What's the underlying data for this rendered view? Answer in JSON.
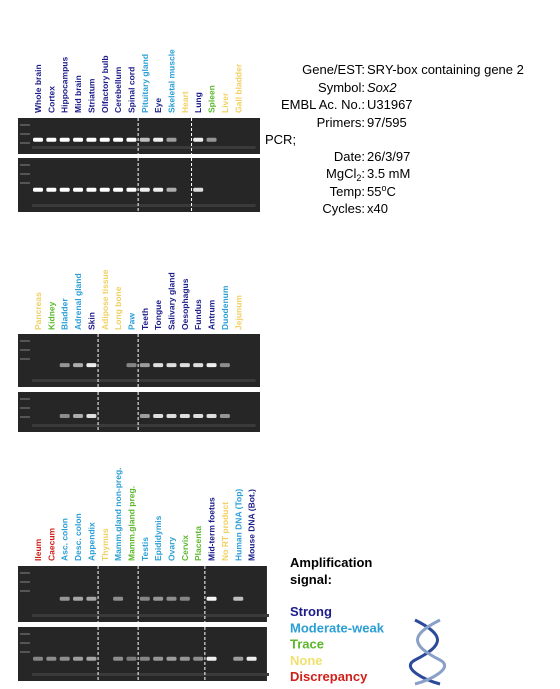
{
  "panels": [
    {
      "lanes": [
        {
          "label": "Whole brain",
          "color": "#1c1c8a"
        },
        {
          "label": "Cortex",
          "color": "#1c1c8a"
        },
        {
          "label": "Hippocampus",
          "color": "#1c1c8a"
        },
        {
          "label": "Mid brain",
          "color": "#1c1c8a"
        },
        {
          "label": "Striatum",
          "color": "#1c1c8a"
        },
        {
          "label": "Olfactory bulb",
          "color": "#1c1c8a"
        },
        {
          "label": "Cerebellum",
          "color": "#1c1c8a"
        },
        {
          "label": "Spinal cord",
          "color": "#1c1c8a"
        },
        {
          "label": "Pituitary gland",
          "color": "#2a9fd6"
        },
        {
          "label": "Eye",
          "color": "#1c1c8a"
        },
        {
          "label": "Skeletal muscle",
          "color": "#2a9fd6"
        },
        {
          "label": "Heart",
          "color": "#f0d060"
        },
        {
          "label": "Lung",
          "color": "#1c1c8a"
        },
        {
          "label": "Spleen",
          "color": "#5cb82a"
        },
        {
          "label": "Liver",
          "color": "#f0d060"
        },
        {
          "label": "Gall bladder",
          "color": "#f0d060"
        }
      ]
    },
    {
      "lanes": [
        {
          "label": "Pancreas",
          "color": "#f0d060"
        },
        {
          "label": "Kidney",
          "color": "#5cb82a"
        },
        {
          "label": "Bladder",
          "color": "#2a9fd6"
        },
        {
          "label": "Adrenal gland",
          "color": "#2a9fd6"
        },
        {
          "label": "Skin",
          "color": "#1c1c8a"
        },
        {
          "label": "Adipose tissue",
          "color": "#f0d060"
        },
        {
          "label": "Long bone",
          "color": "#f0d060"
        },
        {
          "label": "Paw",
          "color": "#2a9fd6"
        },
        {
          "label": "Teeth",
          "color": "#1c1c8a"
        },
        {
          "label": "Tongue",
          "color": "#1c1c8a"
        },
        {
          "label": "Salivary gland",
          "color": "#1c1c8a"
        },
        {
          "label": "Oesophagus",
          "color": "#1c1c8a"
        },
        {
          "label": "Fundus",
          "color": "#1c1c8a"
        },
        {
          "label": "Antrum",
          "color": "#1c1c8a"
        },
        {
          "label": "Duodenum",
          "color": "#2a9fd6"
        },
        {
          "label": "Jejunum",
          "color": "#f0d060"
        }
      ]
    },
    {
      "lanes": [
        {
          "label": "Ileum",
          "color": "#d0201a"
        },
        {
          "label": "Caecum",
          "color": "#d0201a"
        },
        {
          "label": "Asc. colon",
          "color": "#2a9fd6"
        },
        {
          "label": "Desc. colon",
          "color": "#2a9fd6"
        },
        {
          "label": "Appendix",
          "color": "#2a9fd6"
        },
        {
          "label": "Thymus",
          "color": "#f0d060"
        },
        {
          "label": "Mamm.gland non-preg.",
          "color": "#2a9fd6"
        },
        {
          "label": "Mamm.gland preg.",
          "color": "#5cb82a"
        },
        {
          "label": "Testis",
          "color": "#2a9fd6"
        },
        {
          "label": "Epididymis",
          "color": "#2a9fd6"
        },
        {
          "label": "Ovary",
          "color": "#2a9fd6"
        },
        {
          "label": "Cervix",
          "color": "#5cb82a"
        },
        {
          "label": "Placenta",
          "color": "#5cb82a"
        },
        {
          "label": "Mid-term foetus",
          "color": "#1c1c8a"
        },
        {
          "label": "No RT product",
          "color": "#f0d060"
        },
        {
          "label": "Human DNA (Top)",
          "color": "#2a9fd6"
        },
        {
          "label": "Mouse DNA (Bot.)",
          "color": "#1c1c8a"
        }
      ]
    }
  ],
  "info": {
    "gene": {
      "label": "Gene/EST:",
      "value": "SRY-box containing gene 2"
    },
    "symbol": {
      "label": "Symbol:",
      "value": "Sox2"
    },
    "embl": {
      "label": "EMBL Ac. No.:",
      "value": "U31967"
    },
    "primers": {
      "label": "Primers:",
      "value": "97/595"
    },
    "pcr": "PCR;",
    "date": {
      "label": "Date:",
      "value": "26/3/97"
    },
    "mgcl": {
      "label": "MgCl",
      "label_sub": "2",
      "label_after": ":",
      "value": "3.5 mM"
    },
    "temp": {
      "label": "Temp:",
      "value": "55",
      "value_sup": "o",
      "value_after": "C"
    },
    "cycles": {
      "label": "Cycles:",
      "value": "x40"
    }
  },
  "legend": {
    "title_1": "Amplification",
    "title_2": "signal:",
    "items": [
      {
        "label": "Strong",
        "color": "#1c1c8a"
      },
      {
        "label": "Moderate-weak",
        "color": "#2a9fd6"
      },
      {
        "label": "Trace",
        "color": "#5cb82a"
      },
      {
        "label": "None",
        "color": "#f0e070"
      },
      {
        "label": "Discrepancy",
        "color": "#d0201a"
      }
    ]
  }
}
